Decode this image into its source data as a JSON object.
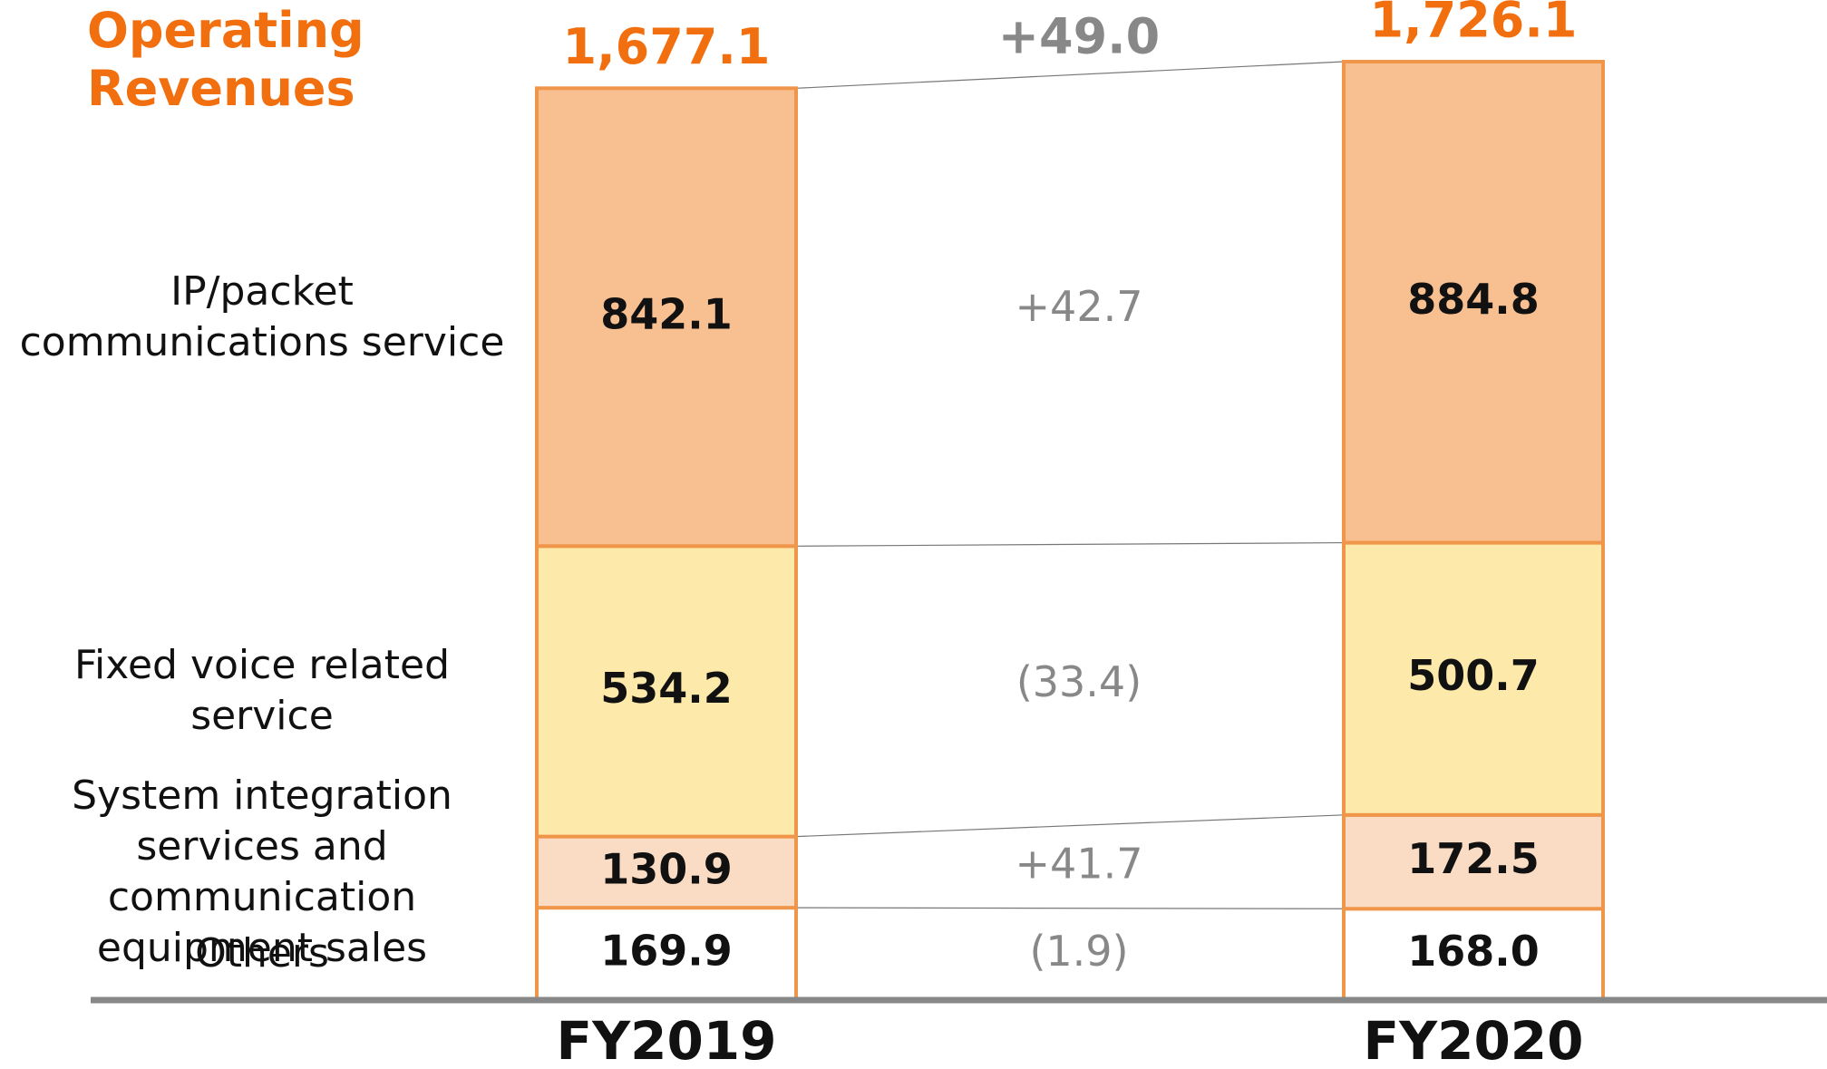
{
  "chart_data": {
    "type": "stacked_bar",
    "title": "Operating Revenues",
    "categories": [
      "FY2019",
      "FY2020"
    ],
    "series": [
      {
        "name": "Others",
        "color": "#ffffff",
        "values": [
          169.9,
          168.0
        ],
        "value_labels": [
          "169.9",
          "168.0"
        ]
      },
      {
        "name": "System integration services and communication equipment sales",
        "color": "#fadcc4",
        "values": [
          130.9,
          172.5
        ],
        "value_labels": [
          "130.9",
          "172.5"
        ]
      },
      {
        "name": "Fixed voice related service",
        "color": "#fde9a9",
        "values": [
          534.2,
          500.7
        ],
        "value_labels": [
          "534.2",
          "500.7"
        ]
      },
      {
        "name": "IP/packet communications service",
        "color": "#f8c090",
        "values": [
          842.1,
          884.8
        ],
        "value_labels": [
          "842.1",
          "884.8"
        ]
      }
    ],
    "totals": {
      "values": [
        1677.1,
        1726.1
      ],
      "value_labels": [
        "1,677.1",
        "1,726.1"
      ]
    },
    "changes": {
      "values": [
        -1.9,
        41.7,
        -33.4,
        42.7
      ],
      "value_labels": [
        "(1.9)",
        "+41.7",
        "(33.4)",
        "+42.7"
      ]
    },
    "total_change": {
      "value": 49.0,
      "label": "+49.0"
    },
    "border_color": "#f0964a",
    "accent_color": "#f26f0f"
  }
}
